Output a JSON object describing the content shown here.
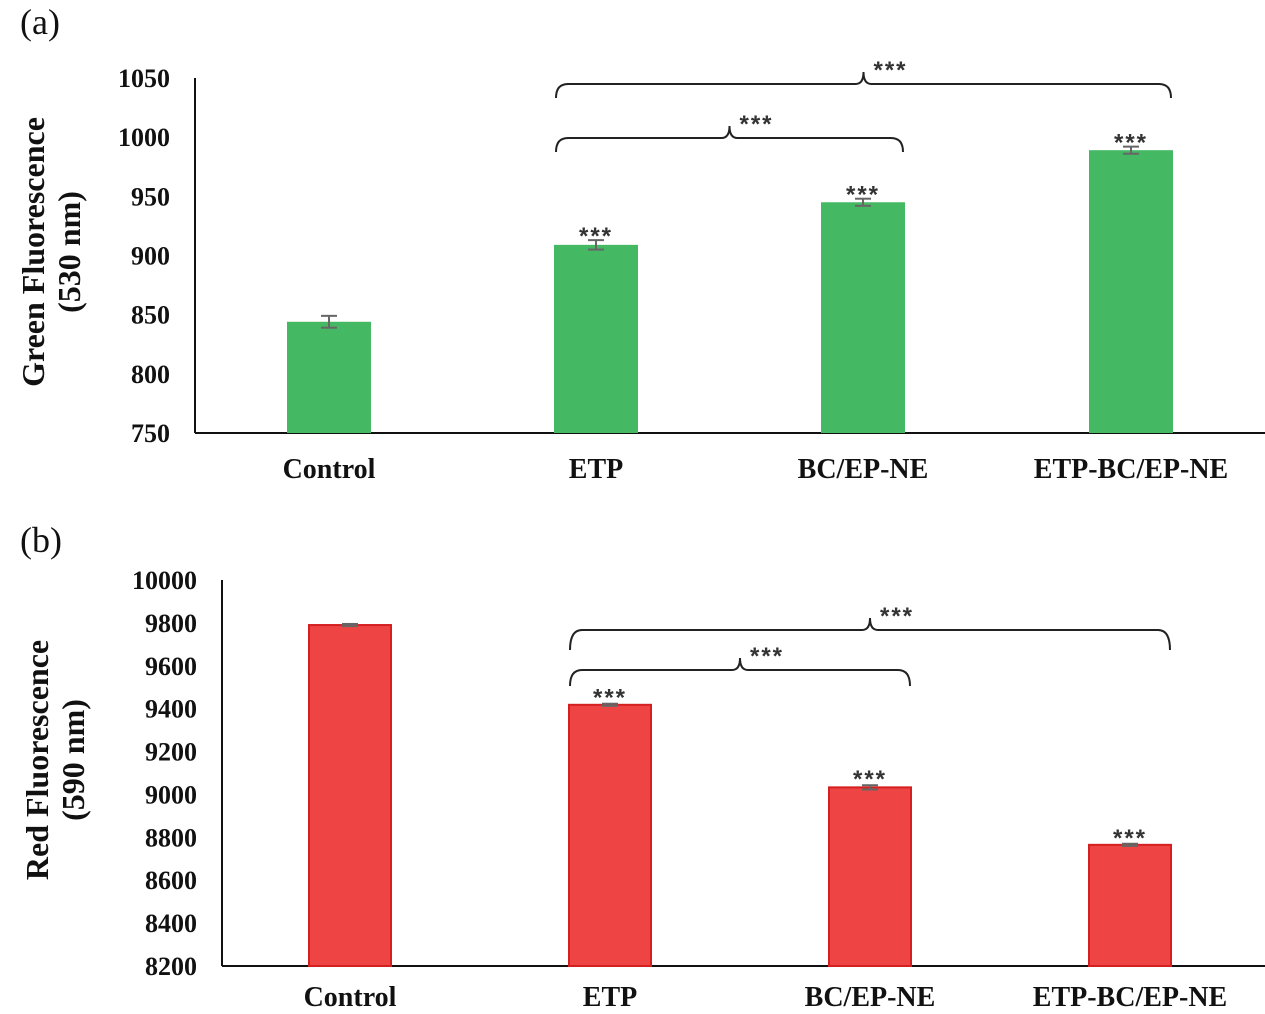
{
  "chart_data": [
    {
      "panel_label": "(a)",
      "type": "bar",
      "ylabel_line1": "Green Fluorescence",
      "ylabel_line2": "(530 nm)",
      "categories": [
        "Control",
        "ETP",
        "BC/EP-NE",
        "ETP-BC/EP-NE"
      ],
      "values": [
        844,
        909,
        945,
        989
      ],
      "errors": [
        5,
        4,
        3,
        3
      ],
      "ylim": [
        750,
        1050
      ],
      "yticks": [
        "750",
        "800",
        "850",
        "900",
        "950",
        "1000",
        "1050"
      ],
      "color": "#45b864",
      "significance": [
        "",
        "***",
        "***",
        "***"
      ],
      "brackets": [
        {
          "from": 1,
          "to": 2,
          "label": "***"
        },
        {
          "from": 1,
          "to": 3,
          "label": "***"
        }
      ]
    },
    {
      "panel_label": "(b)",
      "type": "bar",
      "ylabel_line1": "Red Fluorescence",
      "ylabel_line2": "(590 nm)",
      "categories": [
        "Control",
        "ETP",
        "BC/EP-NE",
        "ETP-BC/EP-NE"
      ],
      "values": [
        9790,
        9418,
        9033,
        8765
      ],
      "errors": [
        5,
        5,
        10,
        5
      ],
      "ylim": [
        8200,
        10000
      ],
      "yticks": [
        "8200",
        "8400",
        "8600",
        "8800",
        "9000",
        "9200",
        "9400",
        "9600",
        "9800",
        "10000"
      ],
      "color": "#ee4444",
      "edge_color": "#d42020",
      "significance": [
        "",
        "***",
        "***",
        "***"
      ],
      "brackets": [
        {
          "from": 1,
          "to": 2,
          "label": "***"
        },
        {
          "from": 1,
          "to": 3,
          "label": "***"
        }
      ]
    }
  ]
}
